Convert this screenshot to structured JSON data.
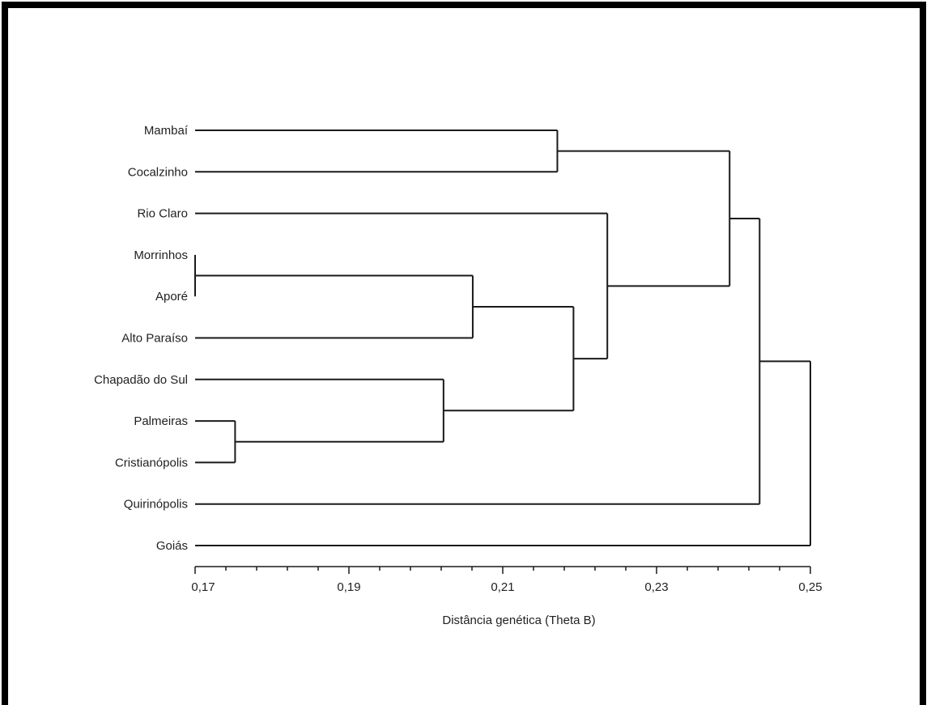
{
  "chart_data": {
    "type": "dendrogram",
    "xlabel": "Distância genética (Theta B)",
    "xlim": [
      0.17,
      0.25
    ],
    "x_ticks": [
      {
        "value": 0.17,
        "label": "0,17"
      },
      {
        "value": 0.19,
        "label": "0,19"
      },
      {
        "value": 0.21,
        "label": "0,21"
      },
      {
        "value": 0.23,
        "label": "0,23"
      },
      {
        "value": 0.25,
        "label": "0,25"
      }
    ],
    "minor_tick_step": 0.004,
    "leaves": [
      "Mambaí",
      "Cocalzinho",
      "Rio Claro",
      "Morrinhos",
      "Aporé",
      "Alto Paraíso",
      "Chapadão do Sul",
      "Palmeiras",
      "Cristianópolis",
      "Quirinópolis",
      "Goiás"
    ],
    "merges": [
      {
        "id": "m1",
        "children": [
          "Morrinhos",
          "Aporé"
        ],
        "distance": 0.17
      },
      {
        "id": "m2",
        "children": [
          "Palmeiras",
          "Cristianópolis"
        ],
        "distance": 0.1752
      },
      {
        "id": "m3",
        "children": [
          "Chapadão do Sul",
          "m2"
        ],
        "distance": 0.2023
      },
      {
        "id": "m4",
        "children": [
          "m1",
          "Alto Paraíso"
        ],
        "distance": 0.2061
      },
      {
        "id": "m5",
        "children": [
          "Mambaí",
          "Cocalzinho"
        ],
        "distance": 0.2171
      },
      {
        "id": "m6",
        "children": [
          "m4",
          "m3"
        ],
        "distance": 0.2192
      },
      {
        "id": "m7",
        "children": [
          "Rio Claro",
          "m6"
        ],
        "distance": 0.2236
      },
      {
        "id": "m8",
        "children": [
          "m5",
          "m7"
        ],
        "distance": 0.2395
      },
      {
        "id": "m9",
        "children": [
          "m8",
          "Quirinópolis"
        ],
        "distance": 0.2434
      },
      {
        "id": "m10",
        "children": [
          "m9",
          "Goiás"
        ],
        "distance": 0.25
      }
    ]
  }
}
